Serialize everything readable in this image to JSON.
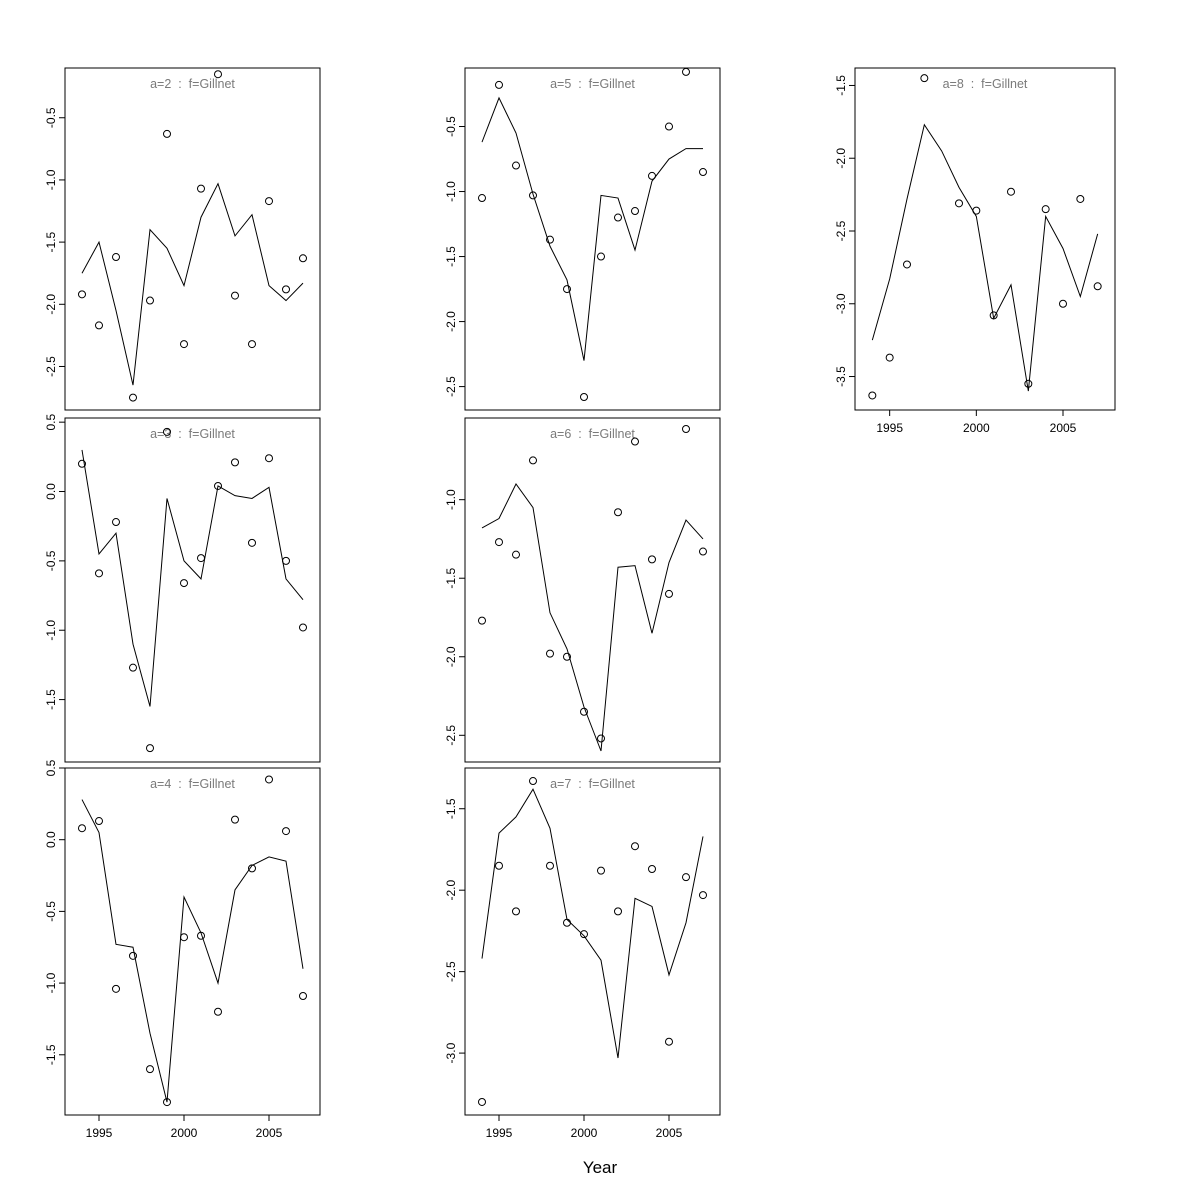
{
  "figure": {
    "background": "#ffffff",
    "line_color": "#000000",
    "point_color": "#000000",
    "title_color": "#7a7a7a",
    "tick_label_color": "#000000"
  },
  "chart_data": {
    "type": "line",
    "xlabel": "Year",
    "x": [
      1994,
      1995,
      1996,
      1997,
      1998,
      1999,
      2000,
      2001,
      2002,
      2003,
      2004,
      2005,
      2006,
      2007
    ],
    "xlim": [
      1993,
      2008
    ],
    "xticks": [
      1995,
      2000,
      2005
    ],
    "grid": false,
    "legend": "none",
    "panels": [
      {
        "id": "a2",
        "title": "a=2  :  f=Gillnet",
        "row": 0,
        "col": 0,
        "ylim": [
          -2.85,
          -0.1
        ],
        "yticks": [
          -0.5,
          -1.0,
          -1.5,
          -2.0,
          -2.5
        ],
        "x_axis_labels": false,
        "series": [
          {
            "name": "observed",
            "style": "points",
            "values": [
              -1.92,
              -2.17,
              -1.62,
              -2.75,
              -1.97,
              -0.63,
              -2.32,
              -1.07,
              -0.15,
              -1.93,
              -2.32,
              -1.17,
              -1.88,
              -1.63
            ]
          },
          {
            "name": "fitted",
            "style": "line",
            "values": [
              -1.75,
              -1.5,
              -2.05,
              -2.65,
              -1.4,
              -1.55,
              -1.85,
              -1.3,
              -1.03,
              -1.45,
              -1.28,
              -1.85,
              -1.97,
              -1.83
            ]
          }
        ]
      },
      {
        "id": "a5",
        "title": "a=5  :  f=Gillnet",
        "row": 0,
        "col": 1,
        "ylim": [
          -2.68,
          -0.05
        ],
        "yticks": [
          -0.5,
          -1.0,
          -1.5,
          -2.0,
          -2.5
        ],
        "x_axis_labels": false,
        "series": [
          {
            "name": "observed",
            "style": "points",
            "values": [
              -1.05,
              -0.18,
              -0.8,
              -1.03,
              -1.37,
              -1.75,
              -2.58,
              -1.5,
              -1.2,
              -1.15,
              -0.88,
              -0.5,
              -0.08,
              -0.85
            ]
          },
          {
            "name": "fitted",
            "style": "line",
            "values": [
              -0.62,
              -0.28,
              -0.55,
              -1.02,
              -1.42,
              -1.68,
              -2.3,
              -1.03,
              -1.05,
              -1.45,
              -0.92,
              -0.75,
              -0.67,
              -0.67
            ]
          }
        ]
      },
      {
        "id": "a8",
        "title": "a=8  :  f=Gillnet",
        "row": 0,
        "col": 2,
        "ylim": [
          -3.73,
          -1.38
        ],
        "yticks": [
          -1.5,
          -2.0,
          -2.5,
          -3.0,
          -3.5
        ],
        "x_axis_labels": true,
        "series": [
          {
            "name": "observed",
            "style": "points",
            "values": [
              -3.63,
              -3.37,
              -2.73,
              -1.45,
              null,
              -2.31,
              -2.36,
              -3.08,
              -2.23,
              -3.55,
              -2.35,
              -3.0,
              -2.28,
              -2.88
            ]
          },
          {
            "name": "fitted",
            "style": "line",
            "values": [
              -3.25,
              -2.83,
              -2.28,
              -1.77,
              -1.95,
              -2.2,
              -2.4,
              -3.1,
              -2.87,
              -3.6,
              -2.4,
              -2.62,
              -2.95,
              -2.52
            ]
          }
        ]
      },
      {
        "id": "a3",
        "title": "a=3  :  f=Gillnet",
        "row": 1,
        "col": 0,
        "ylim": [
          -1.95,
          0.53
        ],
        "yticks": [
          0.5,
          0.0,
          -0.5,
          -1.0,
          -1.5
        ],
        "x_axis_labels": false,
        "series": [
          {
            "name": "observed",
            "style": "points",
            "values": [
              0.2,
              -0.59,
              -0.22,
              -1.27,
              -1.85,
              0.43,
              -0.66,
              -0.48,
              0.04,
              0.21,
              -0.37,
              0.24,
              -0.5,
              -0.98
            ]
          },
          {
            "name": "fitted",
            "style": "line",
            "values": [
              0.3,
              -0.45,
              -0.3,
              -1.1,
              -1.55,
              -0.05,
              -0.5,
              -0.63,
              0.04,
              -0.03,
              -0.05,
              0.03,
              -0.63,
              -0.78
            ]
          }
        ]
      },
      {
        "id": "a6",
        "title": "a=6  :  f=Gillnet",
        "row": 1,
        "col": 1,
        "ylim": [
          -2.67,
          -0.48
        ],
        "yticks": [
          -1.0,
          -1.5,
          -2.0,
          -2.5
        ],
        "x_axis_labels": false,
        "series": [
          {
            "name": "observed",
            "style": "points",
            "values": [
              -1.77,
              -1.27,
              -1.35,
              -0.75,
              -1.98,
              -2.0,
              -2.35,
              -2.52,
              -1.08,
              -0.63,
              -1.38,
              -1.6,
              -0.55,
              -1.33
            ]
          },
          {
            "name": "fitted",
            "style": "line",
            "values": [
              -1.18,
              -1.12,
              -0.9,
              -1.05,
              -1.72,
              -1.95,
              -2.32,
              -2.6,
              -1.43,
              -1.42,
              -1.85,
              -1.4,
              -1.13,
              -1.25
            ]
          }
        ]
      },
      {
        "id": "a4",
        "title": "a=4  :  f=Gillnet",
        "row": 2,
        "col": 0,
        "ylim": [
          -1.92,
          0.5
        ],
        "yticks": [
          0.5,
          0.0,
          -0.5,
          -1.0,
          -1.5
        ],
        "x_axis_labels": true,
        "series": [
          {
            "name": "observed",
            "style": "points",
            "values": [
              0.08,
              0.13,
              -1.04,
              -0.81,
              -1.6,
              -1.83,
              -0.68,
              -0.67,
              -1.2,
              0.14,
              -0.2,
              0.42,
              0.06,
              -1.09
            ]
          },
          {
            "name": "fitted",
            "style": "line",
            "values": [
              0.28,
              0.05,
              -0.73,
              -0.75,
              -1.35,
              -1.83,
              -0.4,
              -0.65,
              -1.0,
              -0.35,
              -0.18,
              -0.12,
              -0.15,
              -0.9
            ]
          }
        ]
      },
      {
        "id": "a7",
        "title": "a=7  :  f=Gillnet",
        "row": 2,
        "col": 1,
        "ylim": [
          -3.38,
          -1.25
        ],
        "yticks": [
          -1.5,
          -2.0,
          -2.5,
          -3.0
        ],
        "x_axis_labels": true,
        "series": [
          {
            "name": "observed",
            "style": "points",
            "values": [
              -3.3,
              -1.85,
              -2.13,
              -1.33,
              -1.85,
              -2.2,
              -2.27,
              -1.88,
              -2.13,
              -1.73,
              -1.87,
              -2.93,
              -1.92,
              -2.03
            ]
          },
          {
            "name": "fitted",
            "style": "line",
            "values": [
              -2.42,
              -1.65,
              -1.55,
              -1.38,
              -1.62,
              -2.18,
              -2.28,
              -2.43,
              -3.03,
              -2.05,
              -2.1,
              -2.52,
              -2.2,
              -1.67
            ]
          }
        ]
      }
    ]
  }
}
